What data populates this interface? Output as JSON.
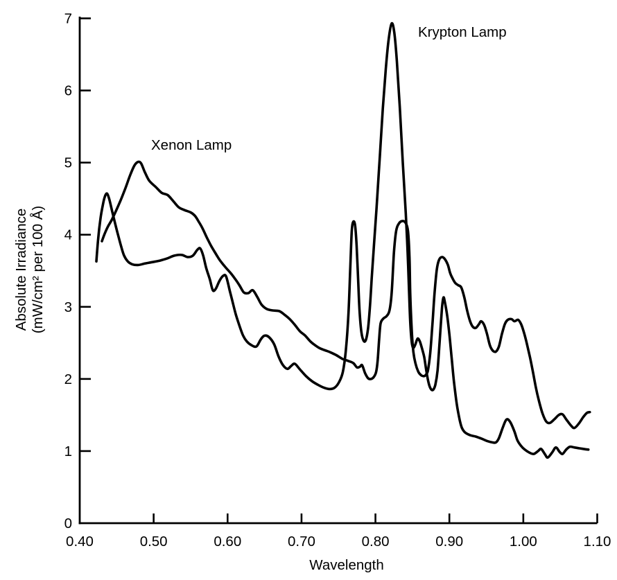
{
  "figure": {
    "background_color": "#ffffff",
    "ink_color": "#000000"
  },
  "chart_data": {
    "type": "line",
    "title": "",
    "xlabel": "Wavelength",
    "ylabel_lines": [
      "Absolute Irradiance",
      "(mW/cm² per 100 Å)"
    ],
    "xlim": [
      0.4,
      1.1
    ],
    "ylim": [
      0,
      7
    ],
    "grid": false,
    "legend_position": "inline-annotations",
    "line_color": "#000000",
    "x_axis": {
      "ticks": [
        {
          "value": 0.4,
          "label": "0.40"
        },
        {
          "value": 0.5,
          "label": "0.50"
        },
        {
          "value": 0.6,
          "label": "0.60"
        },
        {
          "value": 0.7,
          "label": "0.70"
        },
        {
          "value": 0.8,
          "label": "0.80"
        },
        {
          "value": 0.9,
          "label": "0.90"
        },
        {
          "value": 1.0,
          "label": "1.00"
        },
        {
          "value": 1.1,
          "label": "1.10"
        }
      ]
    },
    "y_axis": {
      "ticks": [
        {
          "value": 0,
          "label": "0"
        },
        {
          "value": 1,
          "label": "1"
        },
        {
          "value": 2,
          "label": "2"
        },
        {
          "value": 3,
          "label": "3"
        },
        {
          "value": 4,
          "label": "4"
        },
        {
          "value": 5,
          "label": "5"
        },
        {
          "value": 6,
          "label": "6"
        },
        {
          "value": 7,
          "label": "7"
        }
      ]
    },
    "series": [
      {
        "name": "Xenon Lamp",
        "points": [
          [
            0.43,
            3.91
          ],
          [
            0.434,
            4.02
          ],
          [
            0.438,
            4.11
          ],
          [
            0.443,
            4.2
          ],
          [
            0.449,
            4.33
          ],
          [
            0.455,
            4.47
          ],
          [
            0.462,
            4.65
          ],
          [
            0.468,
            4.82
          ],
          [
            0.474,
            4.96
          ],
          [
            0.479,
            5.01
          ],
          [
            0.483,
            4.99
          ],
          [
            0.488,
            4.87
          ],
          [
            0.494,
            4.75
          ],
          [
            0.503,
            4.66
          ],
          [
            0.511,
            4.58
          ],
          [
            0.519,
            4.55
          ],
          [
            0.527,
            4.46
          ],
          [
            0.534,
            4.38
          ],
          [
            0.542,
            4.34
          ],
          [
            0.55,
            4.31
          ],
          [
            0.556,
            4.26
          ],
          [
            0.561,
            4.18
          ],
          [
            0.566,
            4.09
          ],
          [
            0.572,
            3.96
          ],
          [
            0.578,
            3.84
          ],
          [
            0.585,
            3.72
          ],
          [
            0.59,
            3.64
          ],
          [
            0.597,
            3.55
          ],
          [
            0.604,
            3.47
          ],
          [
            0.61,
            3.39
          ],
          [
            0.616,
            3.3
          ],
          [
            0.622,
            3.2
          ],
          [
            0.628,
            3.19
          ],
          [
            0.634,
            3.23
          ],
          [
            0.64,
            3.14
          ],
          [
            0.646,
            3.03
          ],
          [
            0.653,
            2.97
          ],
          [
            0.661,
            2.95
          ],
          [
            0.67,
            2.94
          ],
          [
            0.677,
            2.89
          ],
          [
            0.684,
            2.83
          ],
          [
            0.691,
            2.75
          ],
          [
            0.698,
            2.66
          ],
          [
            0.705,
            2.6
          ],
          [
            0.712,
            2.52
          ],
          [
            0.718,
            2.47
          ],
          [
            0.724,
            2.43
          ],
          [
            0.731,
            2.4
          ],
          [
            0.739,
            2.37
          ],
          [
            0.747,
            2.33
          ],
          [
            0.755,
            2.28
          ],
          [
            0.763,
            2.25
          ],
          [
            0.77,
            2.22
          ],
          [
            0.775,
            2.16
          ],
          [
            0.779,
            2.17
          ],
          [
            0.782,
            2.19
          ],
          [
            0.786,
            2.08
          ],
          [
            0.79,
            2.01
          ],
          [
            0.794,
            2.0
          ],
          [
            0.798,
            2.03
          ],
          [
            0.801,
            2.1
          ],
          [
            0.803,
            2.26
          ],
          [
            0.805,
            2.55
          ],
          [
            0.807,
            2.77
          ],
          [
            0.811,
            2.84
          ],
          [
            0.815,
            2.87
          ],
          [
            0.819,
            2.95
          ],
          [
            0.822,
            3.2
          ],
          [
            0.825,
            3.75
          ],
          [
            0.828,
            4.05
          ],
          [
            0.832,
            4.16
          ],
          [
            0.837,
            4.19
          ],
          [
            0.841,
            4.16
          ],
          [
            0.844,
            4.05
          ],
          [
            0.846,
            3.7
          ],
          [
            0.847,
            3.2
          ],
          [
            0.849,
            2.7
          ],
          [
            0.851,
            2.4
          ],
          [
            0.854,
            2.22
          ],
          [
            0.858,
            2.1
          ],
          [
            0.862,
            2.05
          ],
          [
            0.866,
            2.04
          ],
          [
            0.869,
            2.07
          ],
          [
            0.871,
            2.12
          ],
          [
            0.874,
            2.35
          ],
          [
            0.877,
            2.75
          ],
          [
            0.88,
            3.2
          ],
          [
            0.883,
            3.52
          ],
          [
            0.886,
            3.65
          ],
          [
            0.89,
            3.69
          ],
          [
            0.894,
            3.66
          ],
          [
            0.898,
            3.58
          ],
          [
            0.901,
            3.47
          ],
          [
            0.904,
            3.4
          ],
          [
            0.908,
            3.33
          ],
          [
            0.912,
            3.3
          ],
          [
            0.916,
            3.27
          ],
          [
            0.92,
            3.14
          ],
          [
            0.924,
            2.95
          ],
          [
            0.928,
            2.8
          ],
          [
            0.932,
            2.72
          ],
          [
            0.936,
            2.71
          ],
          [
            0.94,
            2.76
          ],
          [
            0.943,
            2.8
          ],
          [
            0.947,
            2.75
          ],
          [
            0.951,
            2.62
          ],
          [
            0.955,
            2.46
          ],
          [
            0.959,
            2.39
          ],
          [
            0.963,
            2.38
          ],
          [
            0.967,
            2.45
          ],
          [
            0.971,
            2.62
          ],
          [
            0.975,
            2.76
          ],
          [
            0.979,
            2.82
          ],
          [
            0.984,
            2.83
          ],
          [
            0.988,
            2.8
          ],
          [
            0.993,
            2.82
          ],
          [
            0.997,
            2.76
          ],
          [
            1.001,
            2.64
          ],
          [
            1.005,
            2.48
          ],
          [
            1.009,
            2.3
          ],
          [
            1.013,
            2.1
          ],
          [
            1.017,
            1.88
          ],
          [
            1.021,
            1.7
          ],
          [
            1.026,
            1.52
          ],
          [
            1.031,
            1.41
          ],
          [
            1.036,
            1.39
          ],
          [
            1.042,
            1.44
          ],
          [
            1.048,
            1.5
          ],
          [
            1.053,
            1.51
          ],
          [
            1.058,
            1.44
          ],
          [
            1.064,
            1.36
          ],
          [
            1.069,
            1.32
          ],
          [
            1.075,
            1.38
          ],
          [
            1.081,
            1.47
          ],
          [
            1.086,
            1.53
          ],
          [
            1.09,
            1.54
          ]
        ]
      },
      {
        "name": "Krypton Lamp",
        "points": [
          [
            0.4225,
            3.63
          ],
          [
            0.425,
            3.95
          ],
          [
            0.428,
            4.22
          ],
          [
            0.431,
            4.4
          ],
          [
            0.434,
            4.53
          ],
          [
            0.437,
            4.57
          ],
          [
            0.44,
            4.49
          ],
          [
            0.444,
            4.32
          ],
          [
            0.448,
            4.15
          ],
          [
            0.452,
            3.99
          ],
          [
            0.456,
            3.84
          ],
          [
            0.46,
            3.71
          ],
          [
            0.465,
            3.63
          ],
          [
            0.471,
            3.59
          ],
          [
            0.479,
            3.58
          ],
          [
            0.488,
            3.6
          ],
          [
            0.498,
            3.62
          ],
          [
            0.508,
            3.64
          ],
          [
            0.518,
            3.67
          ],
          [
            0.528,
            3.71
          ],
          [
            0.538,
            3.72
          ],
          [
            0.546,
            3.69
          ],
          [
            0.553,
            3.71
          ],
          [
            0.559,
            3.79
          ],
          [
            0.563,
            3.81
          ],
          [
            0.567,
            3.71
          ],
          [
            0.571,
            3.54
          ],
          [
            0.576,
            3.38
          ],
          [
            0.58,
            3.23
          ],
          [
            0.584,
            3.25
          ],
          [
            0.589,
            3.36
          ],
          [
            0.594,
            3.43
          ],
          [
            0.598,
            3.42
          ],
          [
            0.603,
            3.22
          ],
          [
            0.606,
            3.1
          ],
          [
            0.611,
            2.9
          ],
          [
            0.616,
            2.74
          ],
          [
            0.621,
            2.6
          ],
          [
            0.626,
            2.52
          ],
          [
            0.632,
            2.47
          ],
          [
            0.639,
            2.45
          ],
          [
            0.645,
            2.55
          ],
          [
            0.65,
            2.6
          ],
          [
            0.656,
            2.58
          ],
          [
            0.663,
            2.48
          ],
          [
            0.669,
            2.31
          ],
          [
            0.675,
            2.19
          ],
          [
            0.681,
            2.14
          ],
          [
            0.686,
            2.18
          ],
          [
            0.691,
            2.21
          ],
          [
            0.698,
            2.13
          ],
          [
            0.706,
            2.04
          ],
          [
            0.714,
            1.97
          ],
          [
            0.722,
            1.92
          ],
          [
            0.73,
            1.88
          ],
          [
            0.738,
            1.86
          ],
          [
            0.745,
            1.88
          ],
          [
            0.751,
            1.96
          ],
          [
            0.756,
            2.1
          ],
          [
            0.76,
            2.4
          ],
          [
            0.7635,
            2.9
          ],
          [
            0.766,
            3.55
          ],
          [
            0.768,
            4.05
          ],
          [
            0.77,
            4.18
          ],
          [
            0.7725,
            4.13
          ],
          [
            0.7745,
            3.85
          ],
          [
            0.7765,
            3.4
          ],
          [
            0.7785,
            2.95
          ],
          [
            0.781,
            2.65
          ],
          [
            0.784,
            2.53
          ],
          [
            0.787,
            2.54
          ],
          [
            0.79,
            2.7
          ],
          [
            0.7925,
            3.0
          ],
          [
            0.795,
            3.4
          ],
          [
            0.798,
            3.85
          ],
          [
            0.802,
            4.45
          ],
          [
            0.806,
            5.1
          ],
          [
            0.81,
            5.75
          ],
          [
            0.814,
            6.3
          ],
          [
            0.818,
            6.72
          ],
          [
            0.822,
            6.93
          ],
          [
            0.8255,
            6.8
          ],
          [
            0.829,
            6.4
          ],
          [
            0.833,
            5.75
          ],
          [
            0.837,
            5.0
          ],
          [
            0.841,
            4.3
          ],
          [
            0.8435,
            3.75
          ],
          [
            0.8455,
            3.2
          ],
          [
            0.847,
            2.8
          ],
          [
            0.849,
            2.52
          ],
          [
            0.851,
            2.43
          ],
          [
            0.854,
            2.48
          ],
          [
            0.857,
            2.56
          ],
          [
            0.86,
            2.52
          ],
          [
            0.863,
            2.42
          ],
          [
            0.866,
            2.3
          ],
          [
            0.869,
            2.1
          ],
          [
            0.872,
            1.94
          ],
          [
            0.875,
            1.86
          ],
          [
            0.878,
            1.85
          ],
          [
            0.881,
            1.92
          ],
          [
            0.884,
            2.12
          ],
          [
            0.887,
            2.55
          ],
          [
            0.89,
            2.98
          ],
          [
            0.892,
            3.13
          ],
          [
            0.894,
            3.06
          ],
          [
            0.897,
            2.88
          ],
          [
            0.9,
            2.62
          ],
          [
            0.903,
            2.3
          ],
          [
            0.906,
            1.98
          ],
          [
            0.91,
            1.65
          ],
          [
            0.914,
            1.43
          ],
          [
            0.917,
            1.32
          ],
          [
            0.921,
            1.26
          ],
          [
            0.928,
            1.22
          ],
          [
            0.936,
            1.2
          ],
          [
            0.944,
            1.17
          ],
          [
            0.951,
            1.14
          ],
          [
            0.958,
            1.12
          ],
          [
            0.963,
            1.12
          ],
          [
            0.967,
            1.18
          ],
          [
            0.972,
            1.32
          ],
          [
            0.976,
            1.42
          ],
          [
            0.979,
            1.44
          ],
          [
            0.983,
            1.39
          ],
          [
            0.988,
            1.27
          ],
          [
            0.992,
            1.15
          ],
          [
            0.997,
            1.07
          ],
          [
            1.002,
            1.02
          ],
          [
            1.008,
            0.98
          ],
          [
            1.014,
            0.96
          ],
          [
            1.02,
            1.0
          ],
          [
            1.024,
            1.03
          ],
          [
            1.029,
            0.96
          ],
          [
            1.033,
            0.91
          ],
          [
            1.039,
            0.98
          ],
          [
            1.044,
            1.05
          ],
          [
            1.049,
            0.99
          ],
          [
            1.053,
            0.96
          ],
          [
            1.058,
            1.02
          ],
          [
            1.063,
            1.06
          ],
          [
            1.069,
            1.05
          ],
          [
            1.075,
            1.04
          ],
          [
            1.081,
            1.03
          ],
          [
            1.088,
            1.02
          ]
        ]
      }
    ]
  }
}
